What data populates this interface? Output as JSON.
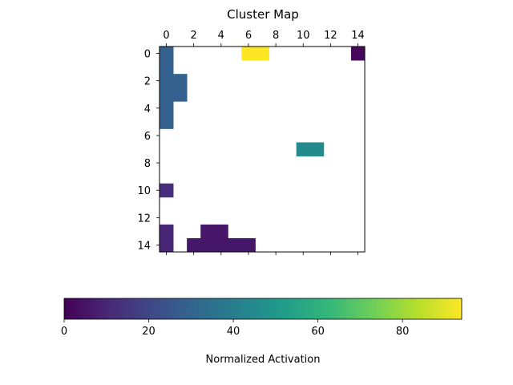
{
  "chart_data": [
    {
      "type": "heatmap",
      "title": "Cluster Map",
      "xlabel": "",
      "ylabel": "",
      "x_ticks": [
        0,
        2,
        4,
        6,
        8,
        10,
        12,
        14
      ],
      "y_ticks": [
        0,
        2,
        4,
        6,
        8,
        10,
        12,
        14
      ],
      "x_tick_position": "top",
      "grid": false,
      "rows": 15,
      "cols": 15,
      "background": "blank (white) where no value",
      "cells": [
        {
          "row": 0,
          "col": 0,
          "value": 29
        },
        {
          "row": 1,
          "col": 0,
          "value": 29
        },
        {
          "row": 2,
          "col": 0,
          "value": 29
        },
        {
          "row": 3,
          "col": 0,
          "value": 29
        },
        {
          "row": 4,
          "col": 0,
          "value": 29
        },
        {
          "row": 5,
          "col": 0,
          "value": 29
        },
        {
          "row": 2,
          "col": 1,
          "value": 29
        },
        {
          "row": 3,
          "col": 1,
          "value": 29
        },
        {
          "row": 0,
          "col": 6,
          "value": 94
        },
        {
          "row": 0,
          "col": 7,
          "value": 94
        },
        {
          "row": 0,
          "col": 14,
          "value": 2
        },
        {
          "row": 7,
          "col": 10,
          "value": 45
        },
        {
          "row": 7,
          "col": 11,
          "value": 45
        },
        {
          "row": 10,
          "col": 0,
          "value": 12
        },
        {
          "row": 13,
          "col": 0,
          "value": 10
        },
        {
          "row": 14,
          "col": 0,
          "value": 10
        },
        {
          "row": 13,
          "col": 3,
          "value": 6
        },
        {
          "row": 13,
          "col": 4,
          "value": 6
        },
        {
          "row": 14,
          "col": 2,
          "value": 6
        },
        {
          "row": 14,
          "col": 3,
          "value": 6
        },
        {
          "row": 14,
          "col": 4,
          "value": 6
        },
        {
          "row": 14,
          "col": 5,
          "value": 6
        },
        {
          "row": 14,
          "col": 6,
          "value": 6
        }
      ],
      "colormap": "viridis",
      "colormap_colors": [
        "#440154",
        "#482878",
        "#3e4989",
        "#31688e",
        "#26828e",
        "#1f9e89",
        "#35b779",
        "#6ece58",
        "#b5de2b",
        "#fde725"
      ]
    },
    {
      "type": "colorbar",
      "orientation": "horizontal",
      "label": "Normalized Activation",
      "range": [
        0,
        94
      ],
      "ticks": [
        0,
        20,
        40,
        60,
        80
      ],
      "colormap": "viridis"
    }
  ]
}
